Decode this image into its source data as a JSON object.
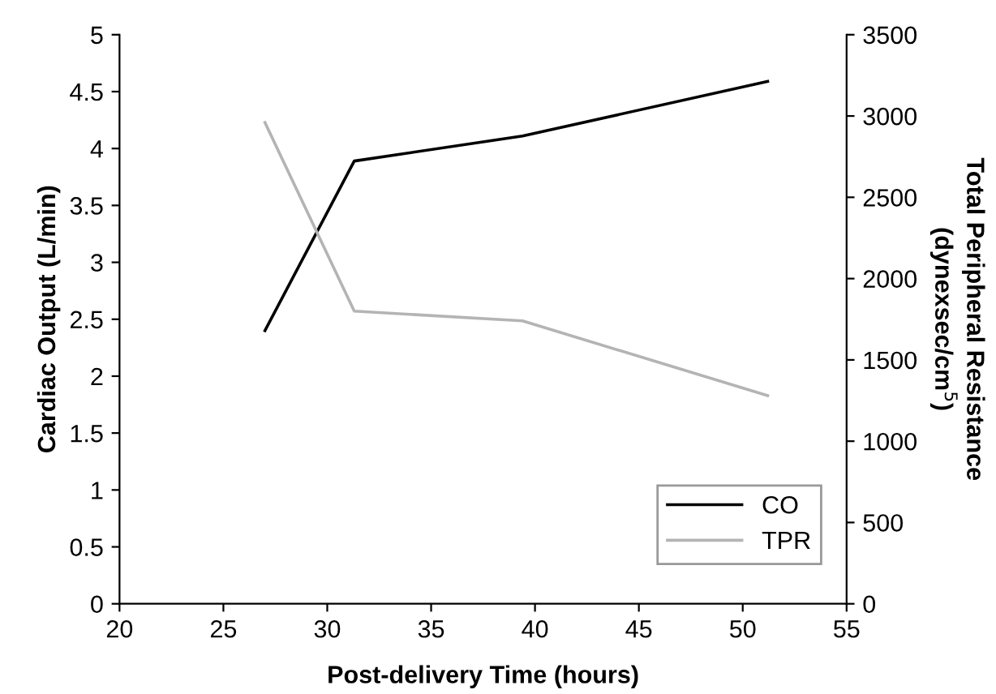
{
  "chart_data": {
    "type": "line",
    "xlabel": "Post-delivery Time (hours)",
    "ylabel": "Cardiac Output (L/min)",
    "y2label": "Total Peripheral Resistance\n(dynexsec/cm$^{5}$)",
    "series": [
      {
        "name": "CO",
        "color": "#000000",
        "x": [
          27.0,
          31.3,
          39.4,
          51.2
        ],
        "values": [
          2.4,
          3.89,
          4.11,
          4.59
        ]
      },
      {
        "name": "TPR",
        "color": "#b4b4b4",
        "axis": "y2",
        "x": [
          27.0,
          31.3,
          39.4,
          51.2
        ],
        "values": [
          2960,
          1800,
          1740,
          1280
        ]
      }
    ],
    "xlim": [
      20,
      55
    ],
    "xticks": [
      20,
      25,
      30,
      35,
      40,
      45,
      50,
      55
    ],
    "ylim": [
      0,
      5
    ],
    "yticks": [
      0,
      0.5,
      1,
      1.5,
      2,
      2.5,
      3,
      3.5,
      4,
      4.5,
      5
    ],
    "y2lim": [
      0,
      3500
    ],
    "y2ticks": [
      0,
      500,
      1000,
      1500,
      2000,
      2500,
      3000,
      3500
    ],
    "legend": "bottom right",
    "grid": false,
    "marker": "none",
    "line_style": "solid"
  }
}
